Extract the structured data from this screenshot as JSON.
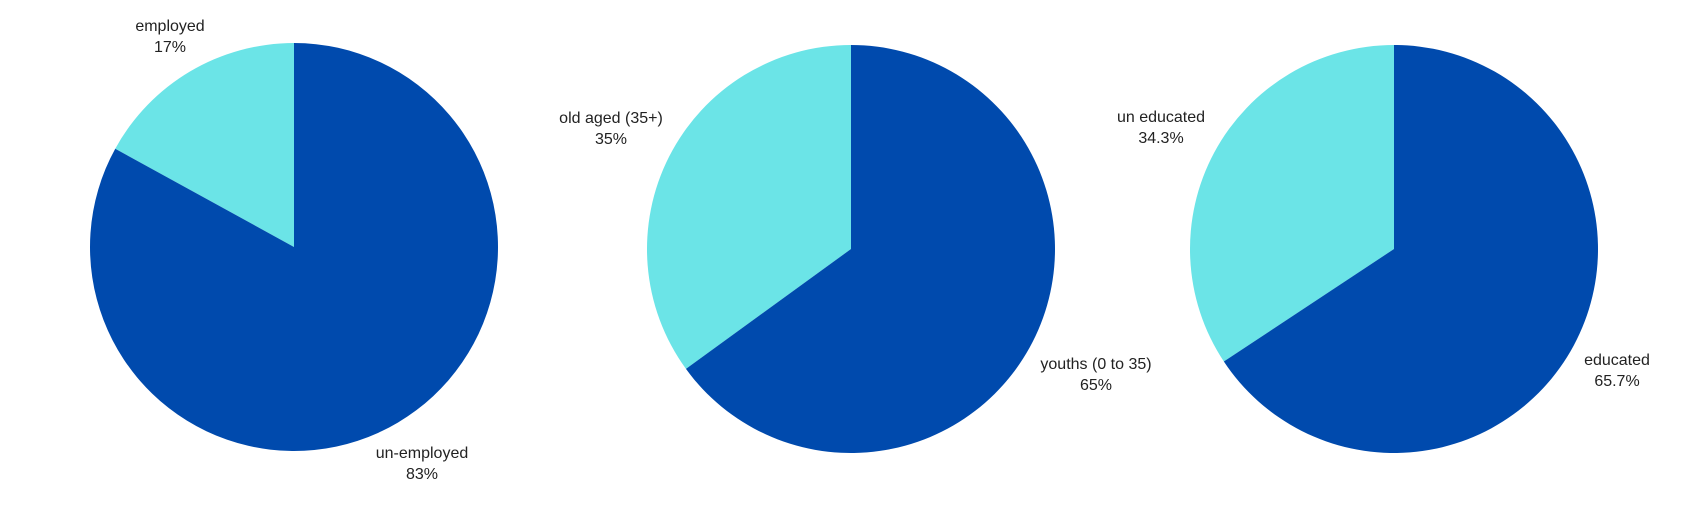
{
  "colors": {
    "primary": "#004aad",
    "secondary": "#6be4e7"
  },
  "chart_data": [
    {
      "type": "pie",
      "slices": [
        {
          "name": "employed",
          "value": 17,
          "label": "17%",
          "color": "#6be4e7"
        },
        {
          "name": "un-employed",
          "value": 83,
          "label": "83%",
          "color": "#004aad"
        }
      ]
    },
    {
      "type": "pie",
      "slices": [
        {
          "name": "old aged (35+)",
          "value": 35,
          "label": "35%",
          "color": "#6be4e7"
        },
        {
          "name": "youths (0 to 35)",
          "value": 65,
          "label": "65%",
          "color": "#004aad"
        }
      ]
    },
    {
      "type": "pie",
      "slices": [
        {
          "name": "un educated",
          "value": 34.3,
          "label": "34.3%",
          "color": "#6be4e7"
        },
        {
          "name": "educated",
          "value": 65.7,
          "label": "65.7%",
          "color": "#004aad"
        }
      ]
    }
  ]
}
